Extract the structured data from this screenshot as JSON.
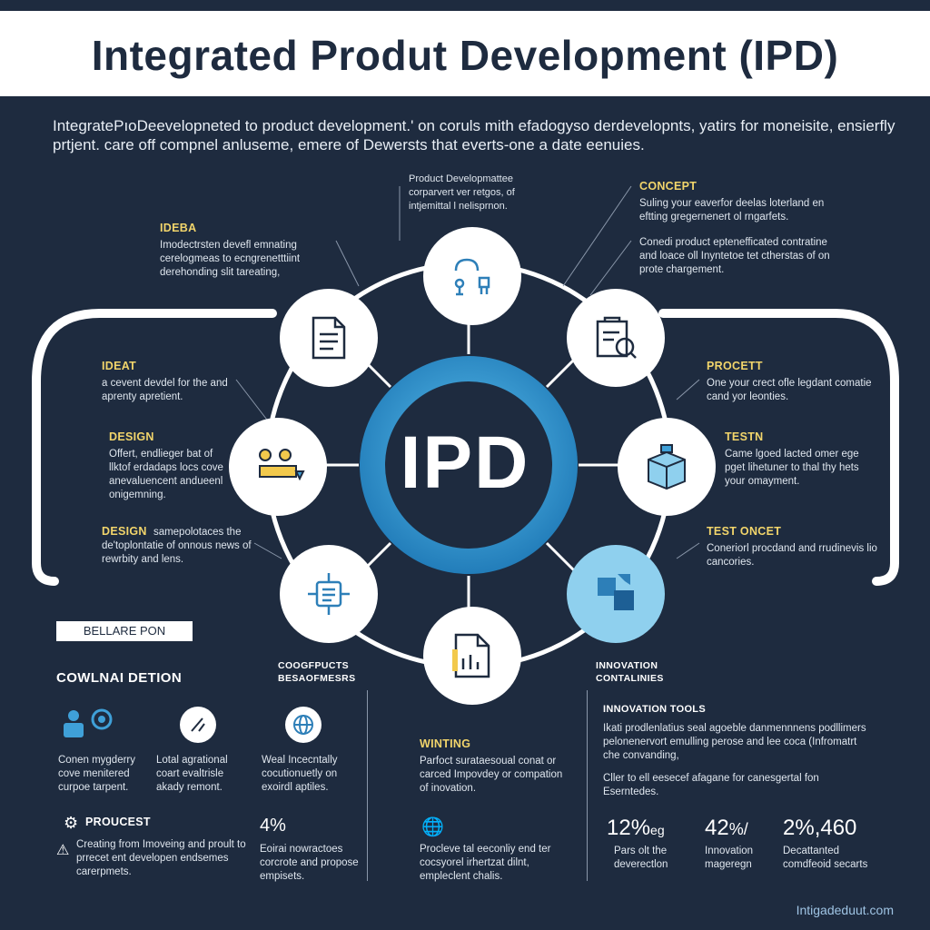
{
  "title": "Integrated Produt Development (IPD)",
  "intro": "IntegratePıoDeevelopneted to product development.' on coruls mith efadogyso derdevelopnts, yatirs for moneisite, ensierfly prtjent. care off compnel anluseme, emere of Dewersts that everts-one a date eenuies.",
  "hub": "IPD",
  "top_note": "Product Developmattee corparvert ver retgos, of intjemittal l nelisprnon.",
  "left_blocks": [
    {
      "label": "IDEBA",
      "text": "Imodectrsten devefl emnating cerelogmeas to ecngrenetttiint derehonding slit tareating,"
    },
    {
      "label": "IDEAT",
      "text": "a cevent devdel for the and aprenty apretient."
    },
    {
      "label": "DESIGN",
      "text": "Offert, endlieger bat of llktof erdadaps locs cove anevaluencent andueenl onigemning."
    },
    {
      "label": "DESIGN",
      "text": "samepolotaces the de'toplontatie of onnous news of rewrbity and lens."
    }
  ],
  "right_blocks": [
    {
      "label": "CONCEPT",
      "text": "Suling your eaverfor deelas loterland en eftting gregernenert ol rngarfets."
    },
    {
      "label": "",
      "text": "Conedi product eptenefficated contratine and loace oll Inyntetoe tet ctherstas of on prote chargement."
    },
    {
      "label": "PROCETT",
      "text": "One your crect ofle legdant comatie cand yor leonties."
    },
    {
      "label": "TESTN",
      "text": "Came lgoed lacted omer ege pget lihetuner to thal thy hets your omayment."
    },
    {
      "label": "TEST ONCET",
      "text": "Coneriorl procdand and rrudinevis lio cancories."
    }
  ],
  "sections": {
    "tag": "BELLARE PON",
    "left_title": "COWLNAI DETION",
    "mid_title": "COOGFPUCTS BESAOFMESRS",
    "right_title": "INNOVATION CONTALINIES",
    "tools_title": "INNOVATION TOOLS",
    "tools_text_1": "Ikati prodlenlatius seal agoeble danmennnens podllimers pelonenervort emulling perose and lee coca (Infromatrt che convanding,",
    "tools_text_2": "Cller to ell eesecef afagane for canesgertal fon Eserntedes."
  },
  "bottom_cols": [
    {
      "text": "Conen mygderry cove menitered curpoe tarpent."
    },
    {
      "text": "Lotal agrational coart evaltrisle akady remont."
    },
    {
      "text": "Weal Incecntally cocutionuetly on exoirdl aptiles."
    }
  ],
  "writing": {
    "label": "WINTING",
    "text": "Parfoct surataesoual conat or carced Impovdey or compation of inovation."
  },
  "process": {
    "label": "PROUCEST",
    "text": "Creating from Imoveing and proult to prrecet ent developen endsemes carerpmets."
  },
  "four": {
    "value": "4%",
    "text": "Eoirai nowractoes corcrote and propose empisets."
  },
  "globe_text": "Procleve tal eeconliy end ter cocsyorel irhertzat dilnt, empleclent chalis.",
  "stats": [
    {
      "value": "12%",
      "suffix": "eg",
      "label": "Pars olt the deverectlon"
    },
    {
      "value": "42",
      "suffix": "%/",
      "label": "Innovation mageregn"
    },
    {
      "value": "2%,460",
      "suffix": "",
      "label": "Decattanted comdfeoid secarts"
    }
  ],
  "footer": "Intigadeduut.com",
  "colors": {
    "background": "#1e2b3f",
    "accent_yellow": "#f2d56b",
    "hub_blue": "#3fa0d8",
    "highlight_node": "#8fd0ee"
  }
}
